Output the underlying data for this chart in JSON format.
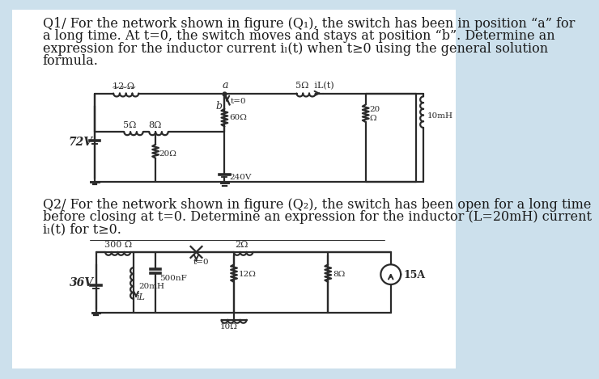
{
  "bg_color": "#cce0ec",
  "page_bg": "#ffffff",
  "text_color": "#1a1a1a",
  "circuit_color": "#2a2a2a",
  "q1_lines": [
    "Q1/ For the network shown in figure (Q₁), the switch has been in position “a” for",
    "a long time. At t=0, the switch moves and stays at position “b”. Determine an",
    "expression for the inductor current iₗ(t) when t≥0 using the general solution",
    "formula."
  ],
  "q2_lines": [
    "Q2/ For the network shown in figure (Q₂), the switch has been open for a long time",
    "before closing at t=0. Determine an expression for the inductor (L=20mH) current",
    "iₗ(t) for t≥0."
  ],
  "font_size": 11.5,
  "lw": 1.6
}
